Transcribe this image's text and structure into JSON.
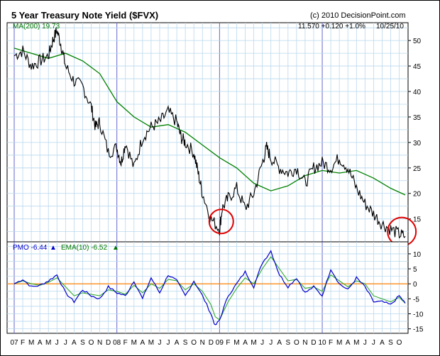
{
  "header": {
    "title": "5 Year Treasury Note Yield ($FVX)",
    "copyright": "(c) 2010 DecisionPoint.com"
  },
  "upper_info": {
    "ma_label": "MA(200) 19.73",
    "quote": "11.570  +0.120  +1.0%",
    "date": "10/25/10"
  },
  "lower_info": {
    "pmo_label": "PMO -6.44",
    "ema_label": "EMA(10) -6.52"
  },
  "colors": {
    "price": "#000000",
    "ma": "#008000",
    "pmo": "#0000cc",
    "ema": "#33aa33",
    "zero_line": "#ff8000",
    "grid": "#b8d8ee",
    "year_line": "#6666cc",
    "circle": "#e00000"
  },
  "x_axis": {
    "months": [
      "07",
      "F",
      "M",
      "A",
      "M",
      "J",
      "J",
      "A",
      "S",
      "O",
      "N",
      "D",
      "08",
      "F",
      "M",
      "A",
      "M",
      "J",
      "J",
      "A",
      "S",
      "O",
      "N",
      "D",
      "09",
      "F",
      "M",
      "A",
      "M",
      "J",
      "J",
      "A",
      "S",
      "O",
      "N",
      "D",
      "10",
      "F",
      "M",
      "A",
      "M",
      "J",
      "J",
      "A",
      "S",
      "O"
    ]
  },
  "chart_data": [
    {
      "type": "line",
      "title": "5 Year Treasury Note Yield ($FVX)",
      "y_ticks": [
        15,
        20,
        25,
        30,
        35,
        40,
        45,
        50
      ],
      "ylim": [
        10.5,
        53.5
      ],
      "x_unit": "month index from Jan 2007",
      "series": [
        {
          "name": "$FVX",
          "x": [
            0,
            1,
            2,
            3,
            4,
            4.5,
            5,
            5.5,
            6,
            7,
            8,
            9,
            9.5,
            10,
            11,
            12,
            12.5,
            13,
            14,
            15,
            16,
            17,
            18,
            19,
            19.5,
            20,
            21,
            21.5,
            22,
            23,
            24,
            24.3,
            25,
            26,
            27,
            28,
            29,
            29.5,
            30,
            31,
            32,
            33,
            34,
            35,
            36,
            37,
            38,
            39,
            40,
            41,
            42,
            43,
            44,
            45,
            45.7
          ],
          "y": [
            47,
            48,
            45,
            46,
            47,
            50,
            52,
            49,
            45,
            42,
            41,
            37,
            33,
            34,
            28,
            29,
            26,
            30,
            25,
            31,
            33,
            34,
            36,
            34,
            31,
            30,
            28,
            24,
            20,
            15,
            13,
            17,
            19,
            21,
            17,
            20,
            26,
            29,
            27,
            25,
            24,
            25,
            22,
            25,
            26,
            25,
            27,
            25,
            21,
            18,
            16,
            14,
            13,
            12,
            11.6
          ]
        },
        {
          "name": "MA(200)",
          "x": [
            0,
            2,
            4,
            6,
            8,
            10,
            12,
            14,
            16,
            18,
            20,
            22,
            24,
            26,
            28,
            30,
            32,
            34,
            36,
            38,
            40,
            42,
            44,
            45.7
          ],
          "y": [
            48.5,
            47.5,
            46.5,
            47.5,
            46,
            43.5,
            38,
            35,
            33,
            33.5,
            32,
            29.5,
            27,
            25,
            22,
            20.5,
            21.5,
            23.5,
            24.5,
            24,
            24.5,
            23,
            21,
            19.7
          ]
        }
      ]
    },
    {
      "type": "line",
      "title": "PMO",
      "y_ticks": [
        -15,
        -10,
        -5,
        0,
        5,
        10
      ],
      "ylim": [
        -16.5,
        14
      ],
      "zero_line": 0,
      "series": [
        {
          "name": "PMO",
          "x": [
            0,
            1,
            2,
            3,
            4,
            5,
            6,
            7,
            8,
            9,
            10,
            11,
            12,
            13,
            14,
            15,
            16,
            17,
            18,
            19,
            20,
            21,
            22,
            23,
            23.5,
            24,
            25,
            26,
            27,
            28,
            29,
            30,
            31,
            32,
            33,
            34,
            35,
            36,
            37,
            38,
            39,
            40,
            41,
            42,
            43,
            44,
            45,
            45.7
          ],
          "y": [
            0,
            1.5,
            -1,
            -0.5,
            1,
            3,
            -3,
            -6,
            -2,
            -4,
            -5,
            -1,
            -3,
            -4,
            1,
            -5,
            2,
            -3,
            3,
            1,
            -4,
            1,
            -4,
            -10,
            -14,
            -12,
            -4,
            0,
            4,
            -1,
            7,
            11,
            3,
            -1,
            2,
            -3,
            -1,
            -4,
            5,
            0,
            -2,
            2,
            -1,
            -6,
            -6,
            -7,
            -4,
            -6.44
          ]
        },
        {
          "name": "EMA(10)",
          "x": [
            0,
            1,
            2,
            3,
            4,
            5,
            6,
            7,
            8,
            9,
            10,
            11,
            12,
            13,
            14,
            15,
            16,
            17,
            18,
            19,
            20,
            21,
            22,
            23,
            23.5,
            24,
            25,
            26,
            27,
            28,
            29,
            30,
            31,
            32,
            33,
            34,
            35,
            36,
            37,
            38,
            39,
            40,
            41,
            42,
            43,
            44,
            45,
            45.7
          ],
          "y": [
            0,
            1,
            0,
            -0.5,
            0.5,
            2,
            -1,
            -4,
            -3,
            -3.5,
            -4,
            -2,
            -2.5,
            -3.5,
            -0.5,
            -3,
            0,
            -1.5,
            1.5,
            1,
            -2,
            0,
            -2.5,
            -7,
            -11,
            -12,
            -6,
            -1.5,
            2,
            0,
            5,
            9,
            5,
            1,
            1.5,
            -1.5,
            -1,
            -2.5,
            3,
            1,
            -1,
            1,
            0,
            -4,
            -5,
            -6,
            -4.5,
            -6.52
          ]
        }
      ]
    }
  ]
}
